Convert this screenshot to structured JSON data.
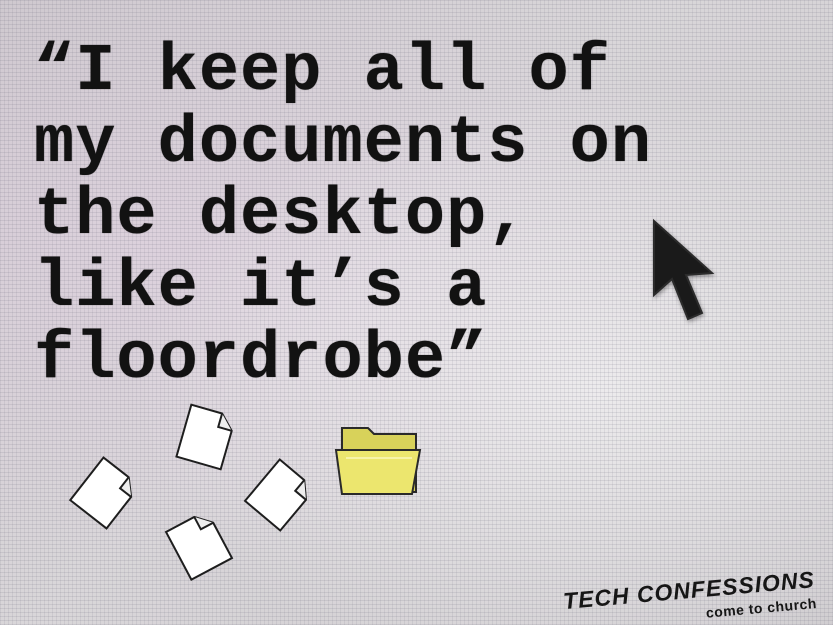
{
  "quote": {
    "lines": [
      "“I keep all of",
      "my documents on",
      "the desktop,",
      "like it’s a",
      "floordrobe”"
    ]
  },
  "branding": {
    "title": "TECH CONFESSIONS",
    "subtitle": "come to church"
  },
  "icons": {
    "cursor": "mouse-pointer-icon",
    "documents": [
      "document-icon",
      "document-icon",
      "document-icon",
      "document-icon"
    ],
    "folder": "folder-icon"
  },
  "colors": {
    "text": "#121212",
    "folder": "#e8e26a",
    "document": "#ffffff"
  }
}
